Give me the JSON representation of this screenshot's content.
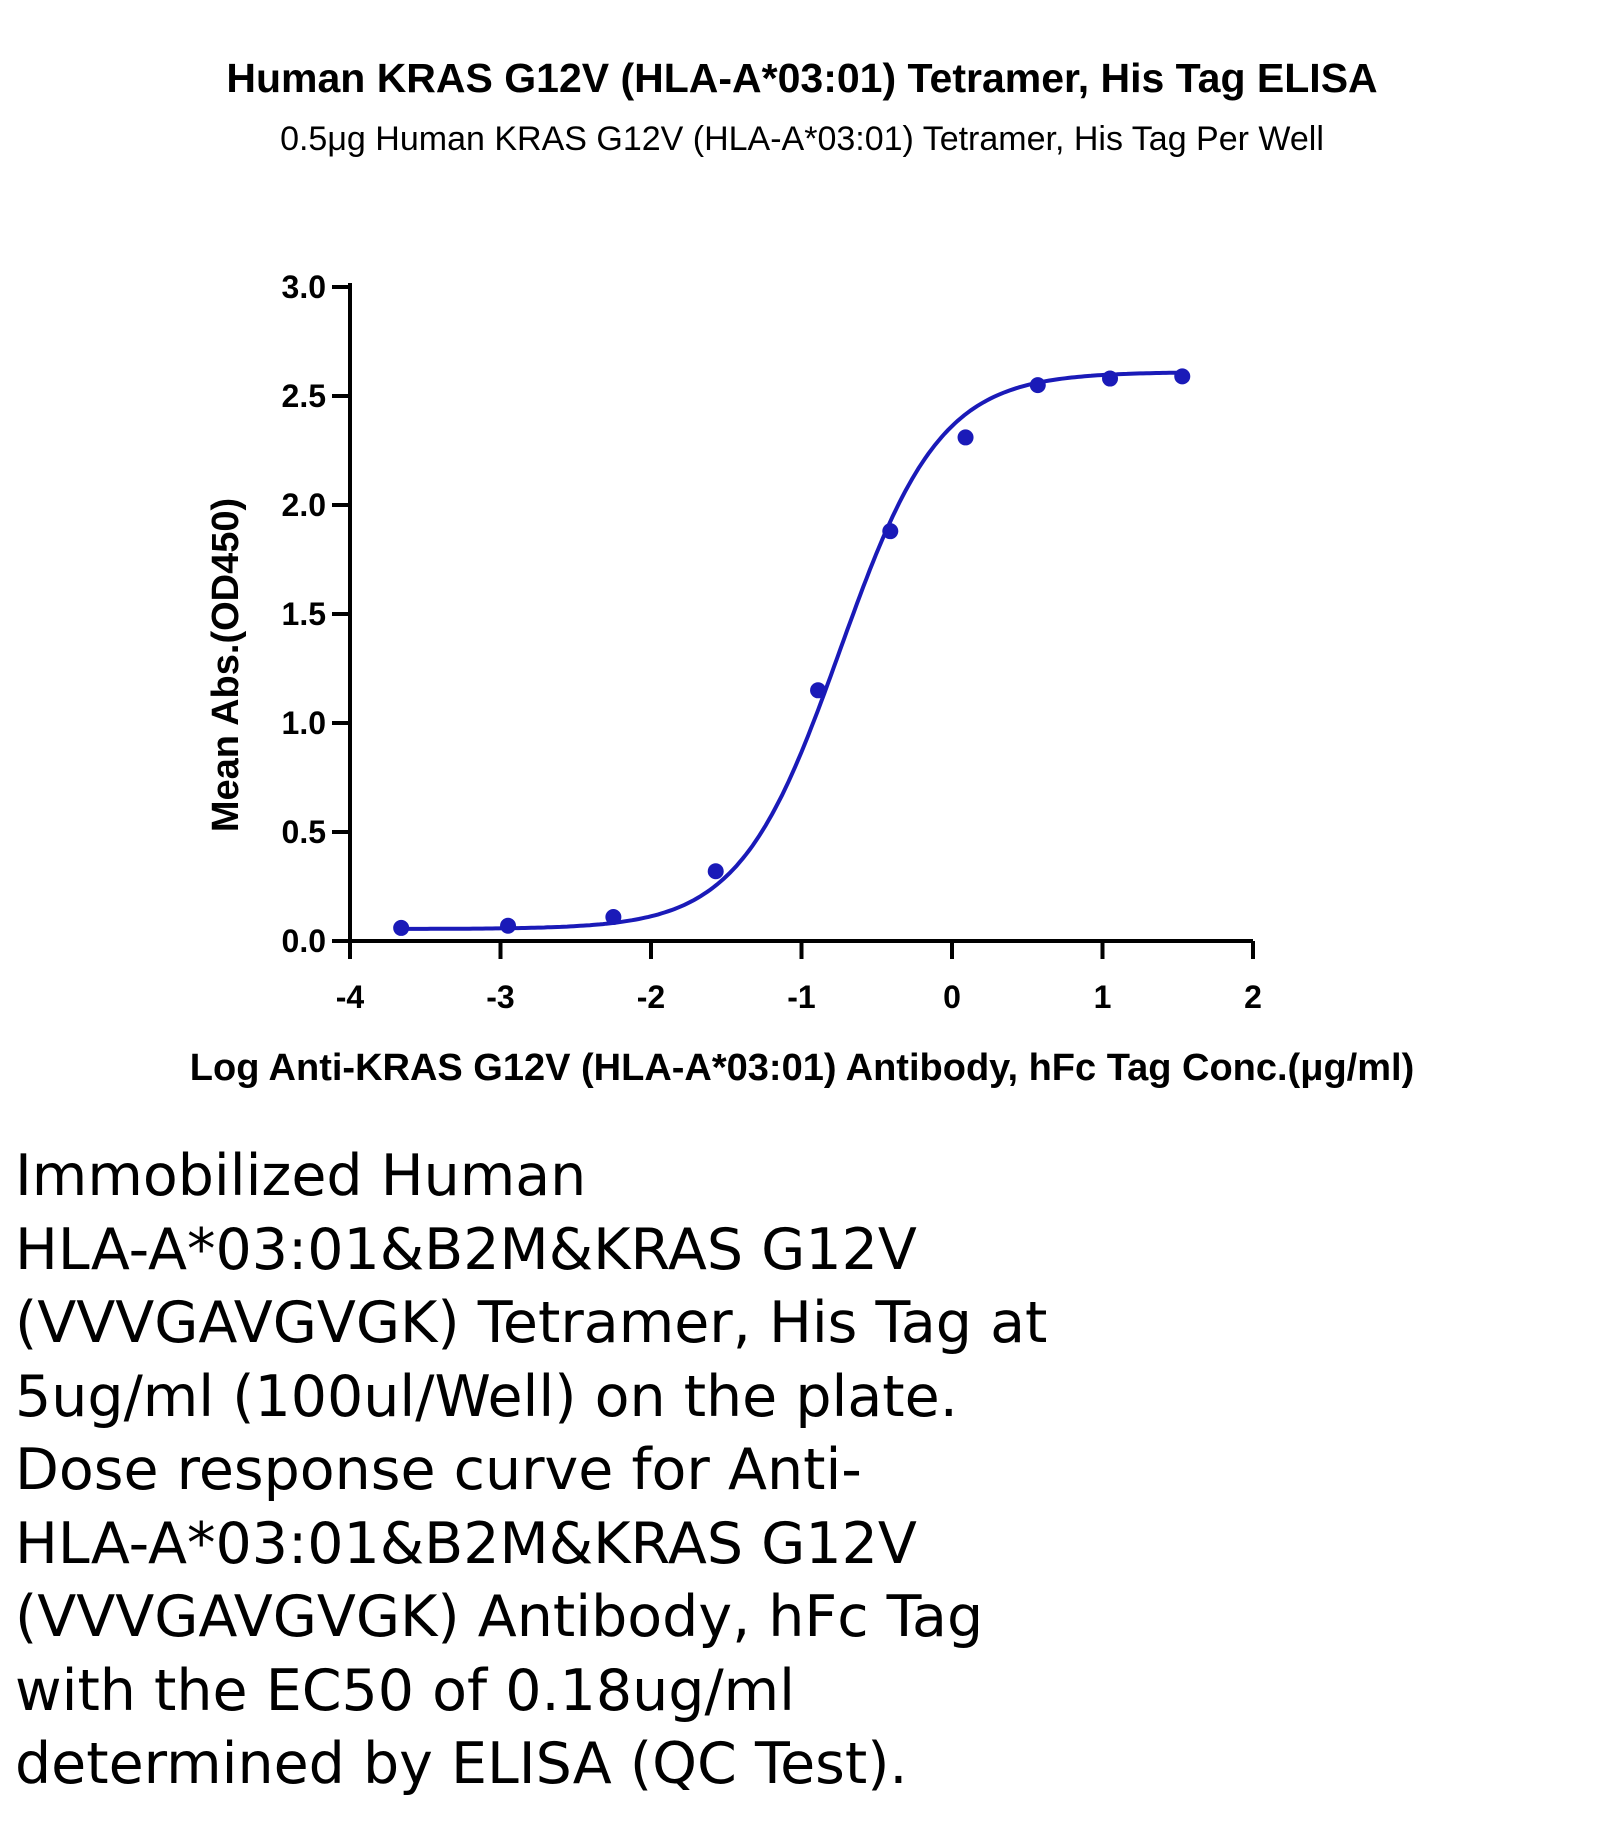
{
  "chart_data": {
    "type": "scatter",
    "title": "Human KRAS G12V (HLA-A*03:01) Tetramer, His Tag ELISA",
    "subtitle": "0.5μg Human KRAS G12V (HLA-A*03:01) Tetramer, His Tag Per Well",
    "xlabel": "Log Anti-KRAS G12V (HLA-A*03:01) Antibody, hFc Tag Conc.(μg/ml)",
    "ylabel": "Mean Abs.(OD450)",
    "xlim": [
      -4,
      2
    ],
    "ylim": [
      0,
      3.0
    ],
    "x_ticks": [
      -4,
      -3,
      -2,
      -1,
      0,
      1,
      2
    ],
    "x_tick_labels": [
      "-4",
      "-3",
      "-2",
      "-1",
      "0",
      "1",
      "2"
    ],
    "y_ticks": [
      0,
      0.5,
      1.0,
      1.5,
      2.0,
      2.5,
      3.0
    ],
    "y_tick_labels": [
      "0.0",
      "0.5",
      "1.0",
      "1.5",
      "2.0",
      "2.5",
      "3.0"
    ],
    "grid": false,
    "legend": "none",
    "color": "#1a1ab8",
    "series": [
      {
        "x": [
          -3.66,
          -2.95,
          -2.25,
          -1.57,
          -0.89,
          -0.41,
          0.09,
          0.57,
          1.05,
          1.53
        ],
        "y": [
          0.06,
          0.07,
          0.11,
          0.32,
          1.15,
          1.88,
          2.31,
          2.55,
          2.58,
          2.59
        ]
      }
    ],
    "fit_curve": {
      "type": "4PL",
      "bottom": 0.055,
      "top": 2.61,
      "log_ec50": -0.745,
      "hill_slope": 1.3
    }
  },
  "caption": {
    "lines": [
      "Immobilized Human",
      "HLA-A*03:01&B2M&KRAS G12V",
      "(VVVGAVGVGK) Tetramer, His Tag at",
      "5ug/ml (100ul/Well) on the plate.",
      "Dose response curve for Anti-",
      "HLA-A*03:01&B2M&KRAS G12V",
      "(VVVGAVGVGK) Antibody, hFc Tag",
      "with the EC50 of 0.18ug/ml",
      "determined by ELISA (QC Test)."
    ]
  }
}
